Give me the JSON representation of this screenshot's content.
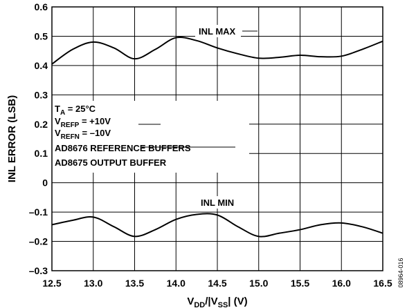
{
  "chart_data": {
    "type": "line",
    "xlabel": "VDD/|VSS| (V)",
    "ylabel": "INL ERROR (LSB)",
    "xlim": [
      12.5,
      16.5
    ],
    "ylim": [
      -0.3,
      0.6
    ],
    "x_ticks": [
      "12.5",
      "13.0",
      "13.5",
      "14.0",
      "14.5",
      "15.0",
      "15.5",
      "16.0",
      "16.5"
    ],
    "y_ticks": [
      "–0.3",
      "–0.2",
      "–0.1",
      "0",
      "0.1",
      "0.2",
      "0.3",
      "0.4",
      "0.5",
      "0.6"
    ],
    "grid": true,
    "series": [
      {
        "name": "INL MAX",
        "x": [
          12.5,
          12.75,
          13.0,
          13.25,
          13.5,
          13.75,
          14.0,
          14.25,
          14.5,
          14.75,
          15.0,
          15.25,
          15.5,
          15.75,
          16.0,
          16.25,
          16.5
        ],
        "values": [
          0.405,
          0.455,
          0.48,
          0.46,
          0.423,
          0.455,
          0.495,
          0.485,
          0.46,
          0.44,
          0.425,
          0.428,
          0.435,
          0.43,
          0.432,
          0.455,
          0.483
        ]
      },
      {
        "name": "INL MIN",
        "x": [
          12.5,
          12.75,
          13.0,
          13.25,
          13.5,
          13.75,
          14.0,
          14.25,
          14.5,
          14.75,
          15.0,
          15.25,
          15.5,
          15.75,
          16.0,
          16.25,
          16.5
        ],
        "values": [
          -0.143,
          -0.128,
          -0.117,
          -0.15,
          -0.183,
          -0.16,
          -0.125,
          -0.108,
          -0.11,
          -0.15,
          -0.183,
          -0.172,
          -0.16,
          -0.143,
          -0.137,
          -0.15,
          -0.172
        ]
      }
    ],
    "annotations": {
      "conditions": [
        "TA = 25°C",
        "VREFP = +10V",
        "VREFN = –10V",
        "AD8676 REFERENCE BUFFERS",
        "AD8675 OUTPUT BUFFER"
      ]
    }
  },
  "figure_id": "08964-016"
}
